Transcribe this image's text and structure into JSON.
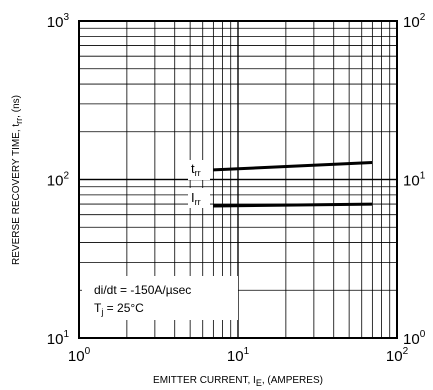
{
  "chart_data": {
    "type": "line",
    "x_scale": "log",
    "y_scale": "log",
    "y2_scale": "log",
    "xlim": [
      1,
      100
    ],
    "ylim": [
      10,
      1000
    ],
    "y2lim": [
      1,
      100
    ],
    "grid": true,
    "x_ticks": [
      {
        "base": "10",
        "exp": "0",
        "value": 1
      },
      {
        "base": "10",
        "exp": "1",
        "value": 10
      },
      {
        "base": "10",
        "exp": "2",
        "value": 100
      }
    ],
    "y_ticks": [
      {
        "base": "10",
        "exp": "1",
        "value": 10
      },
      {
        "base": "10",
        "exp": "2",
        "value": 100
      },
      {
        "base": "10",
        "exp": "3",
        "value": 1000
      }
    ],
    "y2_ticks": [
      {
        "base": "10",
        "exp": "0",
        "value": 1
      },
      {
        "base": "10",
        "exp": "1",
        "value": 10
      },
      {
        "base": "10",
        "exp": "2",
        "value": 100
      }
    ],
    "xlabel": {
      "text": "EMITTER CURRENT, I",
      "sub": "E",
      "after": ", (AMPERES)"
    },
    "ylabel": {
      "text": "REVERSE RECOVERY TIME, t",
      "sub": "rr",
      "after": ", (ns)"
    },
    "annotations": [
      {
        "text": "di/dt = -150A/µsec"
      },
      {
        "text": "T",
        "sub": "j",
        "after": " = 25°C"
      }
    ],
    "series": [
      {
        "name": "t",
        "name_sub": "rr",
        "axis": "left",
        "x": [
          7,
          70
        ],
        "y": [
          115,
          128
        ]
      },
      {
        "name": "I",
        "name_sub": "rr",
        "axis": "right",
        "x": [
          7,
          70
        ],
        "y": [
          6.8,
          7.0
        ]
      }
    ]
  }
}
